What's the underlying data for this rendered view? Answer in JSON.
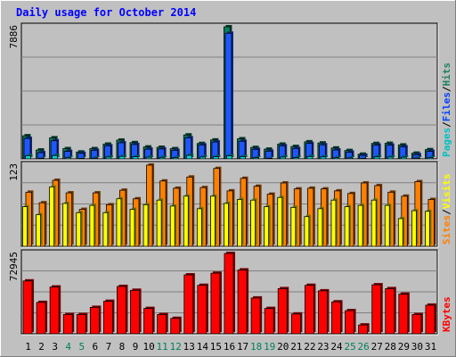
{
  "chart_data": {
    "type": "bar",
    "title": "Daily usage for October 2014",
    "categories": [
      "1",
      "2",
      "3",
      "4",
      "5",
      "6",
      "7",
      "8",
      "9",
      "10",
      "11",
      "12",
      "13",
      "14",
      "15",
      "16",
      "17",
      "18",
      "19",
      "20",
      "21",
      "22",
      "23",
      "24",
      "25",
      "26",
      "27",
      "28",
      "29",
      "30",
      "31"
    ],
    "weekend_days": [
      "4",
      "5",
      "11",
      "12",
      "18",
      "19",
      "25",
      "26"
    ],
    "panels": [
      {
        "name": "hits-files-pages",
        "ymax": 7886,
        "ymax_label": "7886",
        "legend": [
          {
            "label": "Pages",
            "color": "#00c0c0"
          },
          {
            "label": "/",
            "color": "#000000"
          },
          {
            "label": "Files",
            "color": "#0040ff"
          },
          {
            "label": "/",
            "color": "#000000"
          },
          {
            "label": "Hits",
            "color": "#208060"
          }
        ],
        "series": [
          {
            "name": "Hits",
            "color": "#00805c",
            "values": [
              1380,
              530,
              1260,
              610,
              410,
              610,
              880,
              1120,
              970,
              710,
              690,
              610,
              1430,
              920,
              1130,
              7886,
              1200,
              680,
              580,
              880,
              740,
              1020,
              950,
              650,
              500,
              280,
              920,
              930,
              830,
              340,
              550
            ]
          },
          {
            "name": "Files",
            "color": "#1f57ff",
            "values": [
              1220,
              370,
              1080,
              450,
              330,
              510,
              780,
              960,
              860,
              580,
              590,
              510,
              1260,
              830,
              1010,
              7500,
              1050,
              570,
              460,
              780,
              620,
              920,
              840,
              530,
              400,
              210,
              820,
              820,
              720,
              250,
              450
            ]
          },
          {
            "name": "Pages",
            "color": "#00d4d4",
            "values": [
              190,
              40,
              200,
              70,
              30,
              50,
              110,
              150,
              130,
              100,
              90,
              80,
              210,
              110,
              130,
              180,
              140,
              70,
              40,
              110,
              80,
              140,
              120,
              70,
              60,
              30,
              120,
              110,
              100,
              50,
              70
            ]
          }
        ]
      },
      {
        "name": "visits-sites",
        "ymax": 123,
        "ymax_label": "123",
        "legend": [
          {
            "label": "Sites",
            "color": "#ff8000"
          },
          {
            "label": "/",
            "color": "#000000"
          },
          {
            "label": "Visits",
            "color": "#ffff00"
          }
        ],
        "series": [
          {
            "name": "Visits",
            "color": "#ffff00",
            "values": [
              60,
              48,
              90,
              65,
              51,
              62,
              51,
              72,
              56,
              63,
              70,
              61,
              76,
              57,
              76,
              65,
              71,
              70,
              60,
              74,
              59,
              45,
              57,
              70,
              60,
              62,
              70,
              62,
              42,
              54,
              53
            ]
          },
          {
            "name": "Sites",
            "color": "#ff8000",
            "values": [
              82,
              66,
              100,
              81,
              56,
              81,
              63,
              85,
              72,
              123,
              99,
              88,
              105,
              89,
              118,
              84,
              103,
              91,
              79,
              96,
              87,
              88,
              87,
              84,
              80,
              96,
              92,
              82,
              76,
              98,
              71
            ]
          }
        ]
      },
      {
        "name": "kbytes",
        "ymax": 72945,
        "ymax_label": "72945",
        "legend": [
          {
            "label": "KBytes",
            "color": "#ff0000"
          }
        ],
        "series": [
          {
            "name": "KBytes",
            "color": "#ff0000",
            "values": [
              48000,
              28500,
              42500,
              17500,
              17500,
              24000,
              29500,
              43000,
              39500,
              23000,
              17500,
              14000,
              53500,
              44000,
              55000,
              72945,
              58000,
              32500,
              23000,
              41000,
              18000,
              44000,
              39000,
              29000,
              21000,
              8000,
              44500,
              41000,
              36000,
              17500,
              26000
            ]
          }
        ]
      }
    ]
  }
}
